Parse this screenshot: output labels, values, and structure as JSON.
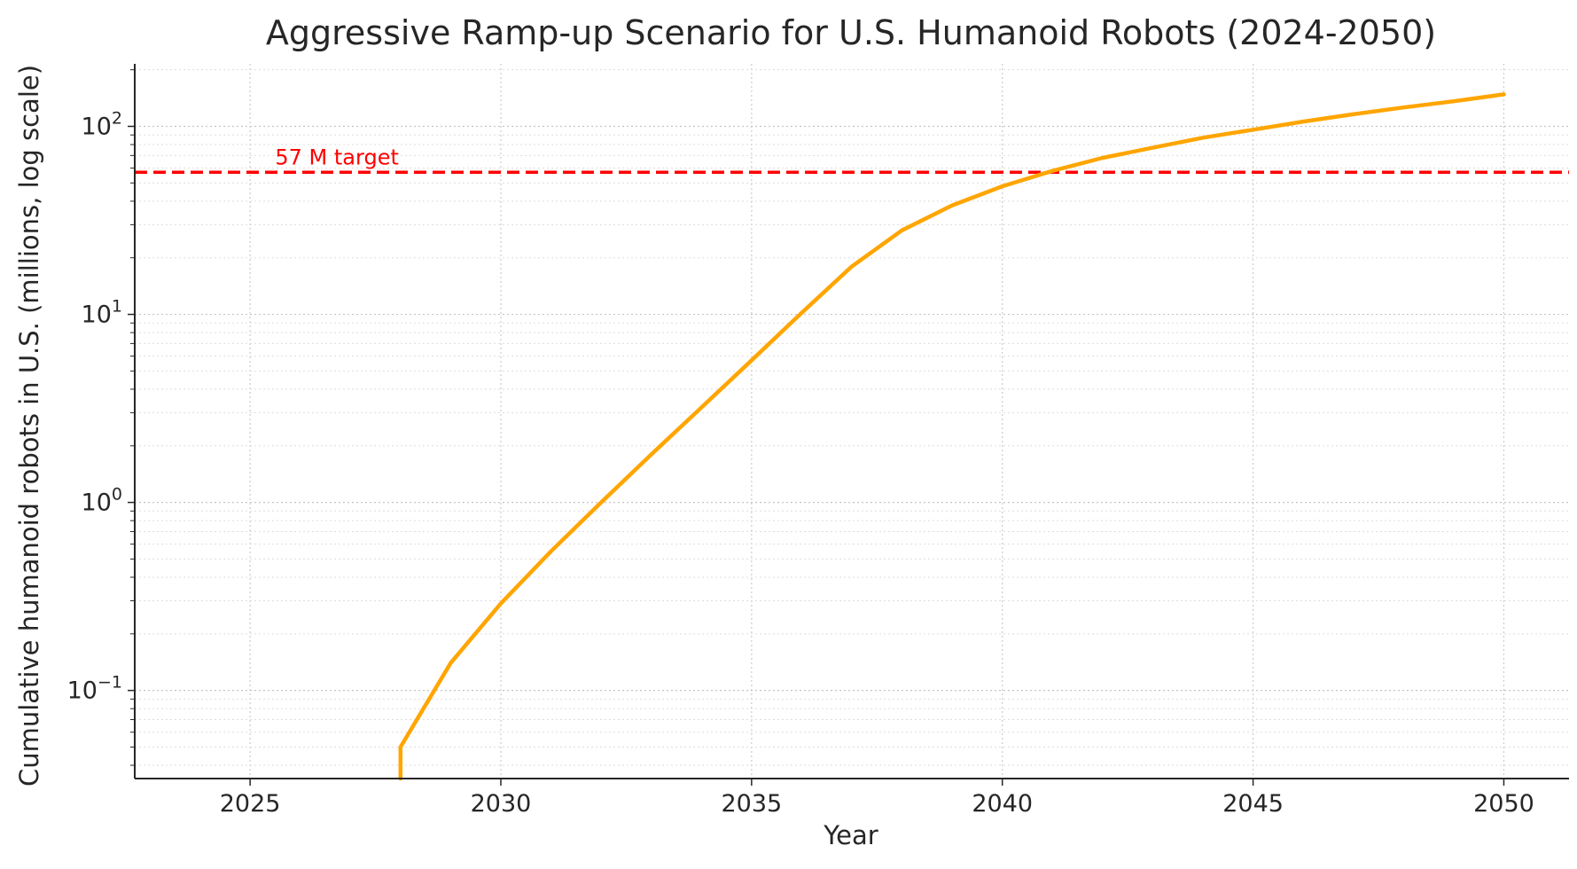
{
  "chart_data": {
    "type": "line",
    "title": "Aggressive Ramp-up Scenario for U.S. Humanoid Robots (2024-2050)",
    "xlabel": "Year",
    "ylabel": "Cumulative humanoid robots in U.S. (millions, log scale)",
    "xlim": [
      2022.7,
      2051.3
    ],
    "ylim": [
      0.034,
      215
    ],
    "yscale": "log",
    "grid": true,
    "x_ticks": [
      2025,
      2030,
      2035,
      2040,
      2045,
      2050
    ],
    "y_ticks": [
      {
        "value": 0.1,
        "base": "10",
        "exp": "−1"
      },
      {
        "value": 1,
        "base": "10",
        "exp": "0"
      },
      {
        "value": 10,
        "base": "10",
        "exp": "1"
      },
      {
        "value": 100,
        "base": "10",
        "exp": "2"
      }
    ],
    "series": [
      {
        "color": "#FFA500",
        "x": [
          2028,
          2028,
          2029,
          2030,
          2031,
          2032,
          2033,
          2034,
          2035,
          2036,
          2037,
          2038,
          2039,
          2040,
          2041,
          2042,
          2043,
          2044,
          2045,
          2046,
          2047,
          2048,
          2049,
          2050
        ],
        "y": [
          0.034,
          0.05,
          0.14,
          0.29,
          0.55,
          1.0,
          1.8,
          3.2,
          5.7,
          10.2,
          18,
          28,
          38,
          48,
          58,
          68,
          77,
          87,
          96,
          106,
          116,
          126,
          136,
          148
        ]
      }
    ],
    "reference_line": {
      "value": 57,
      "label": "57 M target",
      "color": "#FF0000",
      "style": "dashed"
    }
  }
}
